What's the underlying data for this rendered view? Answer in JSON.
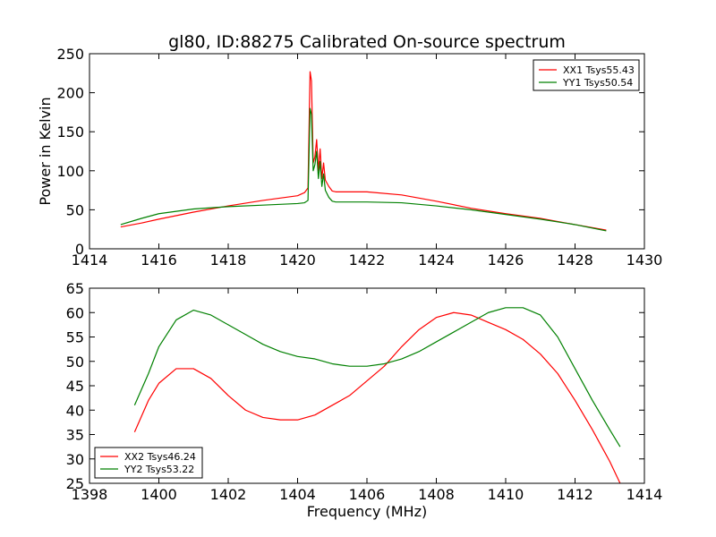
{
  "figure": {
    "title": "gl80, ID:88275 Calibrated On-source spectrum"
  },
  "chart_data": [
    {
      "type": "line",
      "title": "gl80, ID:88275 Calibrated On-source spectrum",
      "xlabel": "",
      "ylabel": "Power in Kelvin",
      "xlim": [
        1414,
        1430
      ],
      "ylim": [
        0,
        250
      ],
      "xticks": [
        "1414",
        "1416",
        "1418",
        "1420",
        "1422",
        "1424",
        "1426",
        "1428",
        "1430"
      ],
      "yticks": [
        "0",
        "50",
        "100",
        "150",
        "200",
        "250"
      ],
      "grid": false,
      "legend_position": "top-right",
      "series": [
        {
          "name": "XX1 Tsys55.43",
          "color": "#ff0000",
          "x": [
            1414.9,
            1415.5,
            1416,
            1417,
            1418,
            1419,
            1420,
            1420.2,
            1420.3,
            1420.36,
            1420.4,
            1420.45,
            1420.5,
            1420.55,
            1420.6,
            1420.65,
            1420.7,
            1420.75,
            1420.8,
            1420.9,
            1421,
            1421.1,
            1422,
            1423,
            1424,
            1425,
            1426,
            1427,
            1428,
            1428.9
          ],
          "y": [
            28,
            33,
            38,
            47,
            55,
            62,
            68,
            72,
            78,
            227,
            215,
            110,
            118,
            140,
            100,
            128,
            90,
            110,
            88,
            80,
            74,
            73,
            73,
            69,
            61,
            52,
            45,
            39,
            31,
            24
          ]
        },
        {
          "name": "YY1 Tsys50.54",
          "color": "#008000",
          "x": [
            1414.9,
            1415.5,
            1416,
            1417,
            1418,
            1419,
            1420,
            1420.2,
            1420.3,
            1420.36,
            1420.4,
            1420.45,
            1420.5,
            1420.55,
            1420.6,
            1420.65,
            1420.7,
            1420.75,
            1420.8,
            1420.9,
            1421,
            1421.1,
            1422,
            1423,
            1424,
            1425,
            1426,
            1427,
            1428,
            1428.9
          ],
          "y": [
            31,
            39,
            45,
            51,
            54,
            56,
            58,
            59,
            62,
            180,
            172,
            100,
            108,
            125,
            90,
            112,
            80,
            96,
            75,
            66,
            61,
            60,
            60,
            59,
            55,
            50,
            44,
            38,
            31,
            23
          ]
        }
      ]
    },
    {
      "type": "line",
      "title": "",
      "xlabel": "Frequency (MHz)",
      "ylabel": "",
      "xlim": [
        1398,
        1414
      ],
      "ylim": [
        25,
        65
      ],
      "xticks": [
        "1398",
        "1400",
        "1402",
        "1404",
        "1406",
        "1408",
        "1410",
        "1412",
        "1414"
      ],
      "yticks": [
        "25",
        "30",
        "35",
        "40",
        "45",
        "50",
        "55",
        "60",
        "65"
      ],
      "grid": false,
      "legend_position": "bottom-left",
      "series": [
        {
          "name": "XX2 Tsys46.24",
          "color": "#ff0000",
          "x": [
            1399.3,
            1399.7,
            1400,
            1400.5,
            1401,
            1401.5,
            1402,
            1402.5,
            1403,
            1403.5,
            1404,
            1404.5,
            1405,
            1405.5,
            1406,
            1406.5,
            1407,
            1407.5,
            1408,
            1408.5,
            1409,
            1409.5,
            1410,
            1410.5,
            1411,
            1411.5,
            1412,
            1412.5,
            1413,
            1413.3
          ],
          "y": [
            35.5,
            42,
            45.5,
            48.5,
            48.5,
            46.5,
            43,
            40,
            38.5,
            38,
            38,
            39,
            41,
            43,
            46,
            49,
            53,
            56.5,
            59,
            60,
            59.5,
            58,
            56.5,
            54.5,
            51.5,
            47.5,
            42,
            36,
            29.5,
            25
          ]
        },
        {
          "name": "YY2 Tsys53.22",
          "color": "#008000",
          "x": [
            1399.3,
            1399.7,
            1400,
            1400.5,
            1401,
            1401.5,
            1402,
            1402.5,
            1403,
            1403.5,
            1404,
            1404.5,
            1405,
            1405.5,
            1406,
            1406.5,
            1407,
            1407.5,
            1408,
            1408.5,
            1409,
            1409.5,
            1410,
            1410.5,
            1411,
            1411.5,
            1412,
            1412.5,
            1413,
            1413.3
          ],
          "y": [
            41,
            47.5,
            53,
            58.5,
            60.5,
            59.5,
            57.5,
            55.5,
            53.5,
            52,
            51,
            50.5,
            49.5,
            49,
            49,
            49.5,
            50.5,
            52,
            54,
            56,
            58,
            60,
            61,
            61,
            59.5,
            55,
            48.5,
            42,
            36,
            32.5
          ]
        }
      ]
    }
  ]
}
